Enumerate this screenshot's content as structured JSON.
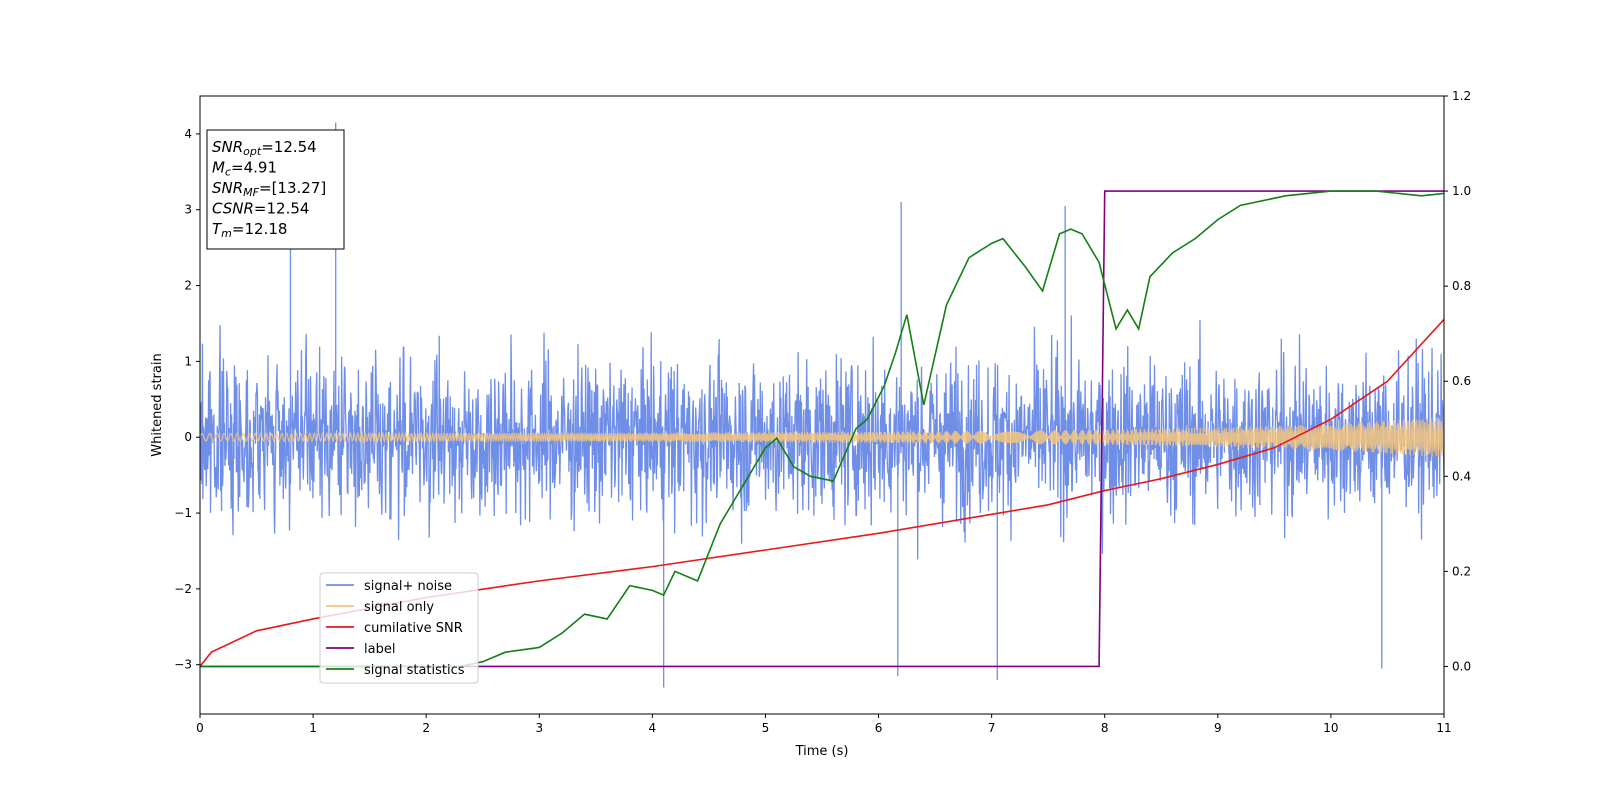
{
  "chart_data": {
    "type": "line",
    "xlabel": "Time (s)",
    "ylabel": "Whitened strain",
    "xlim": [
      0,
      11
    ],
    "ylim_left": [
      -3.65,
      4.5
    ],
    "ylim_right": [
      -0.1,
      1.2
    ],
    "x_ticks": [
      0,
      1,
      2,
      3,
      4,
      5,
      6,
      7,
      8,
      9,
      10,
      11
    ],
    "y_ticks_left": [
      -3,
      -2,
      -1,
      0,
      1,
      2,
      3,
      4
    ],
    "y_ticks_right": [
      0.0,
      0.2,
      0.4,
      0.6,
      0.8,
      1.0,
      1.2
    ],
    "legend_position": "lower-left",
    "legend": [
      {
        "label": "signal+ noise",
        "color": "#6f8ee8"
      },
      {
        "label": "signal only",
        "color": "#f5c57c"
      },
      {
        "label": "cumilative SNR",
        "color": "#e8191b"
      },
      {
        "label": "label",
        "color": "#800080"
      },
      {
        "label": "signal statistics",
        "color": "#138016"
      }
    ],
    "annotation": [
      {
        "base": "SNR",
        "sub": "opt",
        "value": "=12.54"
      },
      {
        "base": "M",
        "sub": "c",
        "value": "=4.91"
      },
      {
        "base": "SNR",
        "sub": "MF",
        "value": "=[13.27]"
      },
      {
        "base": "CSNR",
        "sub": "",
        "value": "=12.54"
      },
      {
        "base": "T",
        "sub": "m",
        "value": "=12.18"
      }
    ],
    "series": [
      {
        "name": "signal+ noise",
        "axis": "left",
        "description_type": "noise",
        "color": "#6f8ee8",
        "typical_range": [
          -2.0,
          2.4
        ],
        "extremes": [
          [
            0.8,
            2.6
          ],
          [
            1.2,
            4.15
          ],
          [
            4.1,
            -3.3
          ],
          [
            6.2,
            3.1
          ],
          [
            7.05,
            -3.2
          ],
          [
            7.65,
            3.05
          ],
          [
            6.17,
            -3.15
          ],
          [
            10.45,
            -3.05
          ]
        ]
      },
      {
        "name": "signal only",
        "axis": "left",
        "color": "#f5c57c",
        "envelope": {
          "x": [
            0,
            2,
            4,
            6,
            7,
            8,
            9,
            10,
            11
          ],
          "amp": [
            0.05,
            0.055,
            0.06,
            0.075,
            0.085,
            0.1,
            0.13,
            0.17,
            0.27
          ]
        }
      },
      {
        "name": "cumilative SNR",
        "axis": "right",
        "color": "#e8191b",
        "x": [
          0,
          0.1,
          0.5,
          1,
          2,
          3,
          4,
          5,
          6,
          7,
          7.5,
          8,
          8.5,
          9,
          9.5,
          10,
          10.5,
          11
        ],
        "y": [
          0.0,
          0.03,
          0.075,
          0.1,
          0.145,
          0.18,
          0.21,
          0.245,
          0.28,
          0.32,
          0.34,
          0.37,
          0.395,
          0.425,
          0.46,
          0.52,
          0.6,
          0.73
        ]
      },
      {
        "name": "label",
        "axis": "right",
        "color": "#800080",
        "x": [
          0,
          7.95,
          8.0,
          11
        ],
        "y": [
          0.0,
          0.0,
          1.0,
          1.0
        ]
      },
      {
        "name": "signal statistics",
        "axis": "right",
        "color": "#138016",
        "x": [
          0,
          2.3,
          2.5,
          2.7,
          3.0,
          3.2,
          3.4,
          3.6,
          3.8,
          4.0,
          4.1,
          4.2,
          4.4,
          4.6,
          4.8,
          5.0,
          5.1,
          5.25,
          5.4,
          5.6,
          5.8,
          5.9,
          6.05,
          6.15,
          6.25,
          6.4,
          6.6,
          6.8,
          7.0,
          7.1,
          7.3,
          7.45,
          7.6,
          7.7,
          7.8,
          7.95,
          8.1,
          8.2,
          8.3,
          8.4,
          8.6,
          8.8,
          9.0,
          9.2,
          9.6,
          10.0,
          10.4,
          10.6,
          10.8,
          11.0
        ],
        "y": [
          0.0,
          0.0,
          0.01,
          0.03,
          0.04,
          0.07,
          0.11,
          0.1,
          0.17,
          0.16,
          0.15,
          0.2,
          0.18,
          0.3,
          0.38,
          0.46,
          0.48,
          0.42,
          0.4,
          0.39,
          0.5,
          0.52,
          0.59,
          0.66,
          0.74,
          0.55,
          0.76,
          0.86,
          0.89,
          0.9,
          0.84,
          0.79,
          0.91,
          0.92,
          0.91,
          0.85,
          0.71,
          0.75,
          0.71,
          0.82,
          0.87,
          0.9,
          0.94,
          0.97,
          0.99,
          1.0,
          1.0,
          0.995,
          0.99,
          0.995
        ]
      }
    ]
  }
}
